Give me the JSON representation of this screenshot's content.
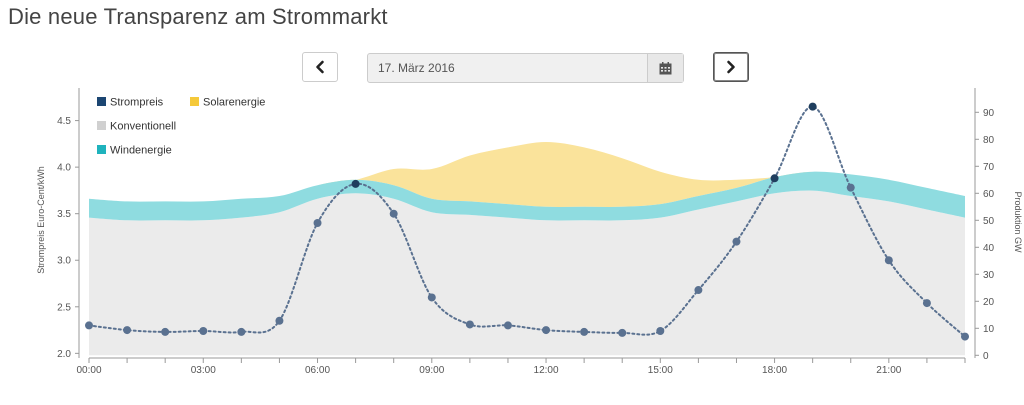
{
  "page": {
    "title": "Die neue Transparenz am Strommarkt"
  },
  "controls": {
    "date_value": "17. März 2016"
  },
  "colors": {
    "strompreis": "#1c4672",
    "solar": "#f5c93a",
    "konventionell": "#d0d0d0",
    "wind": "#1fb3bd",
    "area_fill": "#ebebeb",
    "wind_fill": "#8fdce0",
    "solar_fill": "#fae39b"
  },
  "icons": {
    "prev": "chevron-left-icon",
    "next": "chevron-right-icon",
    "calendar": "calendar-icon"
  },
  "chart_data": {
    "type": "line",
    "x": [
      "00:00",
      "01:00",
      "02:00",
      "03:00",
      "04:00",
      "05:00",
      "06:00",
      "07:00",
      "08:00",
      "09:00",
      "10:00",
      "11:00",
      "12:00",
      "13:00",
      "14:00",
      "15:00",
      "16:00",
      "17:00",
      "18:00",
      "19:00",
      "20:00",
      "21:00",
      "22:00",
      "23:00"
    ],
    "x_tick_labels": [
      "00:00",
      "03:00",
      "06:00",
      "09:00",
      "12:00",
      "15:00",
      "18:00",
      "21:00"
    ],
    "ylabel": "Strompreis Euro-Cent/kWh",
    "ylabel_right": "Produktion GW",
    "ylim": [
      1.95,
      4.85
    ],
    "ylim_right": [
      -1,
      99
    ],
    "y_ticks": [
      2.0,
      2.5,
      3.0,
      3.5,
      4.0,
      4.5
    ],
    "y_tick_labels": [
      "2.0",
      "2.5",
      "3.0",
      "3.5",
      "4.0",
      "4.5"
    ],
    "y_right_ticks": [
      0,
      10,
      20,
      30,
      40,
      50,
      60,
      70,
      80,
      90
    ],
    "legend": [
      "Strompreis",
      "Solarenergie",
      "Konventionell",
      "Windenergie"
    ],
    "legend_position": "top-left",
    "grid": false,
    "series": [
      {
        "name": "Strompreis",
        "axis": "left",
        "style": "dotted-line",
        "values": [
          2.3,
          2.25,
          2.23,
          2.24,
          2.23,
          2.35,
          3.4,
          3.82,
          3.5,
          2.6,
          2.31,
          2.3,
          2.25,
          2.23,
          2.22,
          2.24,
          2.68,
          3.2,
          3.88,
          4.65,
          3.78,
          3.0,
          2.54,
          2.18
        ]
      },
      {
        "name": "Konventionell",
        "axis": "right",
        "style": "stacked-area",
        "values": [
          51,
          50,
          50,
          50,
          51,
          53,
          58,
          60,
          58,
          53,
          52,
          51,
          50,
          50,
          50,
          51,
          54,
          57,
          60,
          61,
          59,
          57,
          54,
          51
        ]
      },
      {
        "name": "Windenergie",
        "axis": "right",
        "style": "stacked-area",
        "values": [
          7,
          7,
          7,
          7,
          7,
          6,
          5,
          5,
          5,
          5,
          5,
          5,
          5,
          5,
          5,
          5,
          5,
          5,
          6,
          7,
          8,
          8,
          8,
          8
        ]
      },
      {
        "name": "Solarenergie",
        "axis": "right",
        "style": "stacked-area",
        "values": [
          0,
          0,
          0,
          0,
          0,
          0,
          0,
          0,
          6,
          11,
          17,
          21,
          24,
          22,
          18,
          12,
          6,
          3,
          0,
          0,
          0,
          0,
          0,
          0
        ]
      }
    ]
  }
}
